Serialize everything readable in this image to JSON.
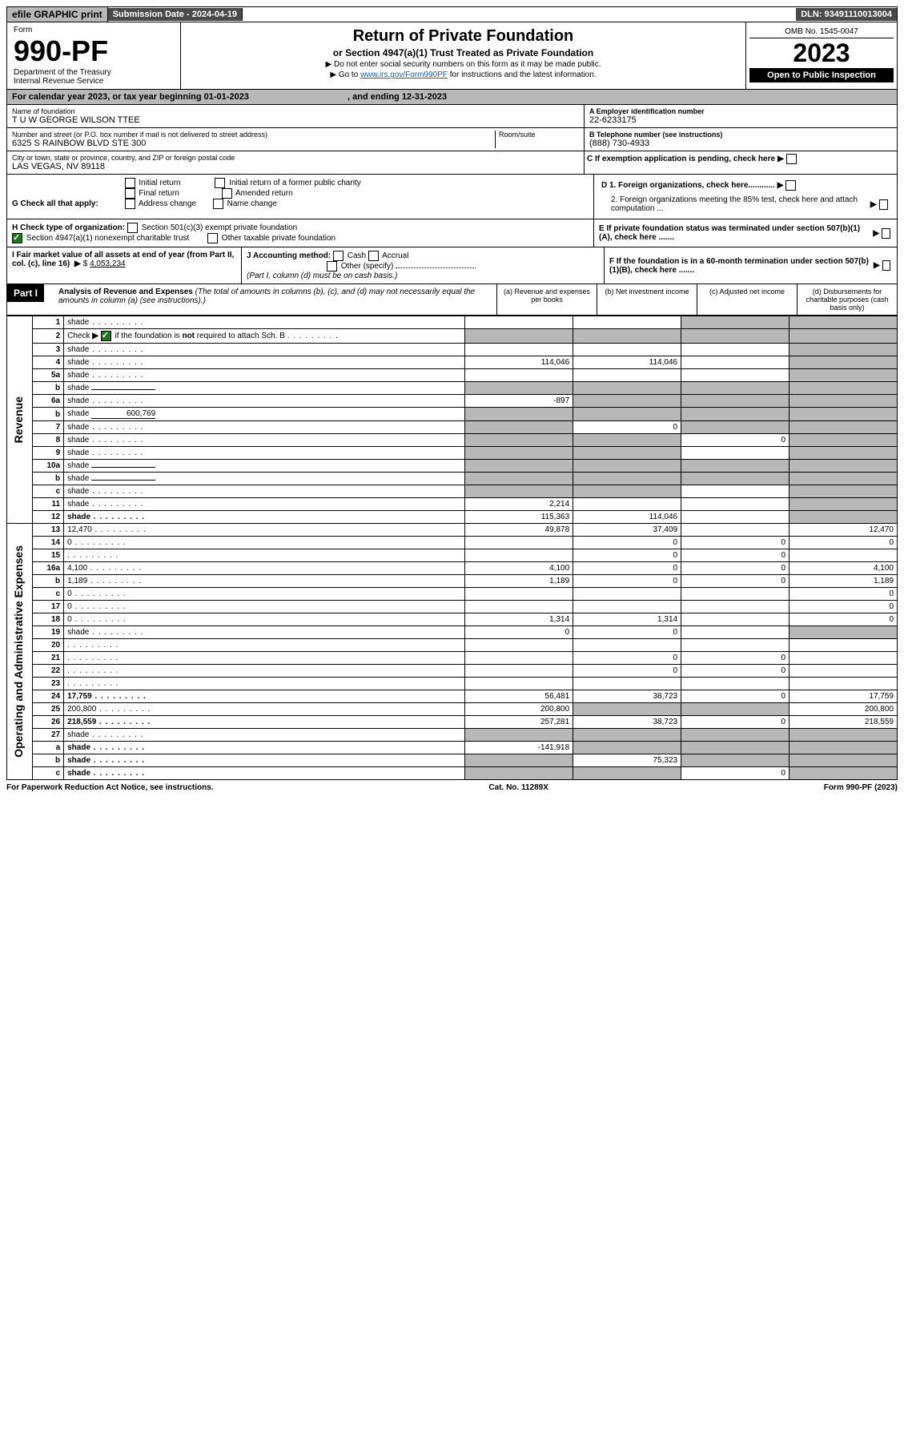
{
  "top": {
    "efile": "efile GRAPHIC print",
    "sub_label": "Submission Date - 2024-04-19",
    "dln": "DLN: 93491110013004"
  },
  "header": {
    "form_label": "Form",
    "form_num": "990-PF",
    "dept": "Department of the Treasury",
    "irs": "Internal Revenue Service",
    "title": "Return of Private Foundation",
    "subtitle": "or Section 4947(a)(1) Trust Treated as Private Foundation",
    "instr1": "▶ Do not enter social security numbers on this form as it may be made public.",
    "instr2_a": "▶ Go to ",
    "instr2_link": "www.irs.gov/Form990PF",
    "instr2_b": " for instructions and the latest information.",
    "omb": "OMB No. 1545-0047",
    "year": "2023",
    "open": "Open to Public Inspection"
  },
  "cal": {
    "text_a": "For calendar year 2023, or tax year beginning ",
    "begin": "01-01-2023",
    "text_b": " , and ending ",
    "end": "12-31-2023"
  },
  "info": {
    "name_label": "Name of foundation",
    "name": "T U W GEORGE WILSON TTEE",
    "addr_label": "Number and street (or P.O. box number if mail is not delivered to street address)",
    "addr": "6325 S RAINBOW BLVD STE 300",
    "room_label": "Room/suite",
    "city_label": "City or town, state or province, country, and ZIP or foreign postal code",
    "city": "LAS VEGAS, NV  89118",
    "ein_label": "A Employer identification number",
    "ein": "22-6233175",
    "phone_label": "B Telephone number (see instructions)",
    "phone": "(888) 730-4933",
    "c_label": "C If exemption application is pending, check here"
  },
  "g": {
    "label": "G Check all that apply:",
    "opts": [
      "Initial return",
      "Final return",
      "Address change",
      "Initial return of a former public charity",
      "Amended return",
      "Name change"
    ]
  },
  "h": {
    "label": "H Check type of organization:",
    "opt1": "Section 501(c)(3) exempt private foundation",
    "opt2": "Section 4947(a)(1) nonexempt charitable trust",
    "opt3": "Other taxable private foundation"
  },
  "d": {
    "d1": "D 1. Foreign organizations, check here............",
    "d2": "2. Foreign organizations meeting the 85% test, check here and attach computation ..."
  },
  "e": "E  If private foundation status was terminated under section 507(b)(1)(A), check here .......",
  "i": {
    "label": "I Fair market value of all assets at end of year (from Part II, col. (c), line 16)",
    "val": "4,053,234"
  },
  "j": {
    "label": "J Accounting method:",
    "cash": "Cash",
    "accrual": "Accrual",
    "other": "Other (specify)",
    "note": "(Part I, column (d) must be on cash basis.)"
  },
  "f": "F  If the foundation is in a 60-month termination under section 507(b)(1)(B), check here .......",
  "part1": {
    "label": "Part I",
    "title": "Analysis of Revenue and Expenses",
    "note": "(The total of amounts in columns (b), (c), and (d) may not necessarily equal the amounts in column (a) (see instructions).)",
    "col_a": "(a)   Revenue and expenses per books",
    "col_b": "(b)    Net investment income",
    "col_c": "(c)   Adjusted net income",
    "col_d": "(d)   Disbursements for charitable purposes (cash basis only)"
  },
  "sides": {
    "revenue": "Revenue",
    "expenses": "Operating and Administrative Expenses"
  },
  "rows": [
    {
      "n": "1",
      "d": "shade",
      "a": "",
      "b": "",
      "c": "shade"
    },
    {
      "n": "2",
      "d": "shade",
      "a": "shade",
      "b": "shade",
      "c": "shade",
      "special": "check"
    },
    {
      "n": "3",
      "d": "shade",
      "a": "",
      "b": "",
      "c": ""
    },
    {
      "n": "4",
      "d": "shade",
      "a": "114,046",
      "b": "114,046",
      "c": ""
    },
    {
      "n": "5a",
      "d": "shade",
      "a": "",
      "b": "",
      "c": ""
    },
    {
      "n": "b",
      "d": "shade",
      "a": "shade",
      "b": "shade",
      "c": "shade",
      "inline": ""
    },
    {
      "n": "6a",
      "d": "shade",
      "a": "-897",
      "b": "shade",
      "c": "shade"
    },
    {
      "n": "b",
      "d": "shade",
      "a": "shade",
      "b": "shade",
      "c": "shade",
      "inline": "600,769"
    },
    {
      "n": "7",
      "d": "shade",
      "a": "shade",
      "b": "0",
      "c": "shade"
    },
    {
      "n": "8",
      "d": "shade",
      "a": "shade",
      "b": "shade",
      "c": "0"
    },
    {
      "n": "9",
      "d": "shade",
      "a": "shade",
      "b": "shade",
      "c": ""
    },
    {
      "n": "10a",
      "d": "shade",
      "a": "shade",
      "b": "shade",
      "c": "shade",
      "inline": ""
    },
    {
      "n": "b",
      "d": "shade",
      "a": "shade",
      "b": "shade",
      "c": "shade",
      "inline": ""
    },
    {
      "n": "c",
      "d": "shade",
      "a": "shade",
      "b": "shade",
      "c": ""
    },
    {
      "n": "11",
      "d": "shade",
      "a": "2,214",
      "b": "",
      "c": ""
    },
    {
      "n": "12",
      "d": "shade",
      "a": "115,363",
      "b": "114,046",
      "c": "",
      "bold": true
    },
    {
      "n": "13",
      "d": "12,470",
      "a": "49,878",
      "b": "37,409",
      "c": ""
    },
    {
      "n": "14",
      "d": "0",
      "a": "",
      "b": "0",
      "c": "0"
    },
    {
      "n": "15",
      "d": "",
      "a": "",
      "b": "0",
      "c": "0"
    },
    {
      "n": "16a",
      "d": "4,100",
      "a": "4,100",
      "b": "0",
      "c": "0"
    },
    {
      "n": "b",
      "d": "1,189",
      "a": "1,189",
      "b": "0",
      "c": "0"
    },
    {
      "n": "c",
      "d": "0",
      "a": "",
      "b": "",
      "c": ""
    },
    {
      "n": "17",
      "d": "0",
      "a": "",
      "b": "",
      "c": ""
    },
    {
      "n": "18",
      "d": "0",
      "a": "1,314",
      "b": "1,314",
      "c": ""
    },
    {
      "n": "19",
      "d": "shade",
      "a": "0",
      "b": "0",
      "c": ""
    },
    {
      "n": "20",
      "d": "",
      "a": "",
      "b": "",
      "c": ""
    },
    {
      "n": "21",
      "d": "",
      "a": "",
      "b": "0",
      "c": "0"
    },
    {
      "n": "22",
      "d": "",
      "a": "",
      "b": "0",
      "c": "0"
    },
    {
      "n": "23",
      "d": "",
      "a": "",
      "b": "",
      "c": ""
    },
    {
      "n": "24",
      "d": "17,759",
      "a": "56,481",
      "b": "38,723",
      "c": "0",
      "bold": true
    },
    {
      "n": "25",
      "d": "200,800",
      "a": "200,800",
      "b": "shade",
      "c": "shade"
    },
    {
      "n": "26",
      "d": "218,559",
      "a": "257,281",
      "b": "38,723",
      "c": "0",
      "bold": true
    },
    {
      "n": "27",
      "d": "shade",
      "a": "shade",
      "b": "shade",
      "c": "shade"
    },
    {
      "n": "a",
      "d": "shade",
      "a": "-141,918",
      "b": "shade",
      "c": "shade",
      "bold": true
    },
    {
      "n": "b",
      "d": "shade",
      "a": "shade",
      "b": "75,323",
      "c": "shade",
      "bold": true
    },
    {
      "n": "c",
      "d": "shade",
      "a": "shade",
      "b": "shade",
      "c": "0",
      "bold": true
    }
  ],
  "footer": {
    "left": "For Paperwork Reduction Act Notice, see instructions.",
    "mid": "Cat. No. 11289X",
    "right": "Form 990-PF (2023)"
  }
}
